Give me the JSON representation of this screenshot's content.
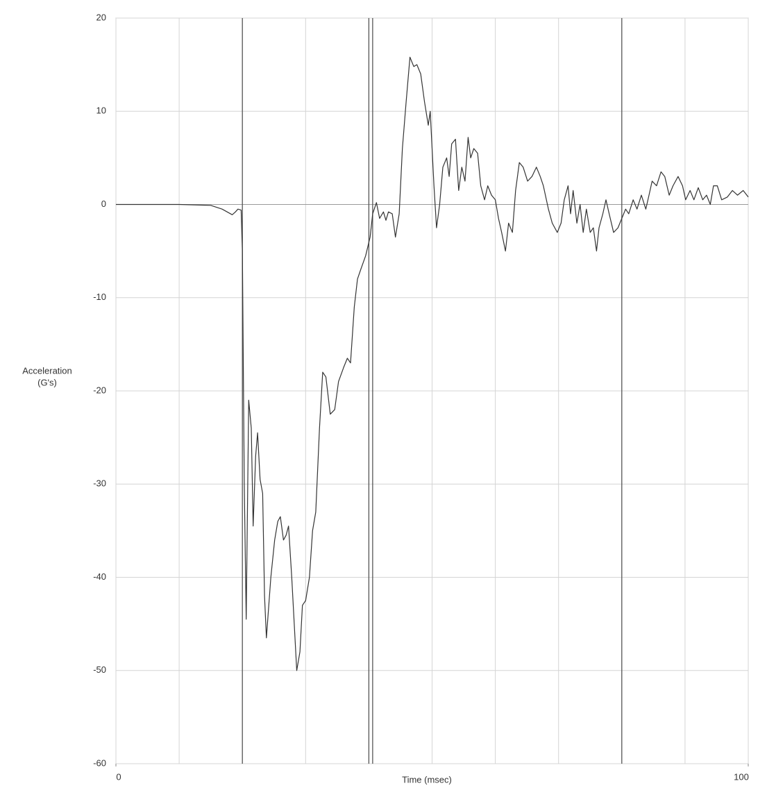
{
  "chart_data": {
    "type": "line",
    "xlabel": "Time (msec)",
    "ylabel": [
      "Acceleration",
      "(G's)"
    ],
    "xlim": [
      0,
      100
    ],
    "ylim": [
      -60,
      20
    ],
    "xticks": [
      0,
      100
    ],
    "yticks": [
      20,
      10,
      0,
      -10,
      -20,
      -30,
      -40,
      -50,
      -60
    ],
    "xgrid": [
      0,
      10,
      20,
      30,
      40,
      50,
      60,
      70,
      80,
      90,
      100
    ],
    "grid": true,
    "vlines": [
      20,
      40,
      40.6,
      80
    ],
    "color": "#333333",
    "x": [
      0,
      10,
      15,
      16.8,
      18.4,
      18.9,
      19.3,
      19.8,
      20,
      20.3,
      20.6,
      21,
      21.4,
      21.7,
      22.1,
      22.4,
      22.8,
      23.2,
      23.5,
      23.8,
      24.5,
      25.1,
      25.6,
      26,
      26.5,
      26.9,
      27.3,
      27.8,
      28.2,
      28.6,
      29.1,
      29.5,
      30,
      30.6,
      31.1,
      31.6,
      32.2,
      32.7,
      33.2,
      33.9,
      34.6,
      35.2,
      36,
      36.6,
      37.1,
      37.7,
      38.2,
      38.7,
      39.5,
      40.2,
      40.6,
      41.2,
      41.7,
      42.3,
      42.7,
      43.1,
      43.7,
      44.2,
      44.8,
      45.3,
      45.9,
      46.5,
      47.1,
      47.6,
      48.2,
      48.8,
      49.4,
      49.7,
      50.3,
      50.7,
      51.2,
      51.7,
      52.3,
      52.7,
      53.1,
      53.7,
      54.2,
      54.7,
      55.2,
      55.7,
      56.1,
      56.6,
      57.2,
      57.7,
      58.3,
      58.8,
      59.4,
      60,
      60.5,
      61,
      61.6,
      62.1,
      62.7,
      63.2,
      63.8,
      64.4,
      65.1,
      65.8,
      66.5,
      67.1,
      67.6,
      68.4,
      69,
      69.8,
      70.4,
      70.9,
      71.5,
      71.9,
      72.3,
      72.9,
      73.4,
      73.9,
      74.4,
      75,
      75.5,
      76,
      76.4,
      77,
      77.5,
      78,
      78.7,
      79.4,
      80,
      80.6,
      81.1,
      81.8,
      82.4,
      83.1,
      83.8,
      84.3,
      84.8,
      85.5,
      86.2,
      86.8,
      87.5,
      88.1,
      88.9,
      89.6,
      90.1,
      90.8,
      91.4,
      92.1,
      92.8,
      93.4,
      94,
      94.5,
      95.1,
      95.8,
      96.7,
      97.5,
      98.3,
      99.2,
      100
    ],
    "series": [
      {
        "name": "Acceleration",
        "color": "#333333",
        "values": [
          0,
          0,
          -0.1,
          -0.5,
          -1.1,
          -0.8,
          -0.5,
          -0.6,
          -5,
          -30,
          -44.5,
          -21,
          -24,
          -34.5,
          -27,
          -24.5,
          -29.5,
          -31,
          -42,
          -46.5,
          -40,
          -36,
          -34,
          -33.5,
          -36,
          -35.5,
          -34.5,
          -40,
          -45,
          -50,
          -48,
          -43,
          -42.5,
          -40,
          -35,
          -33,
          -24,
          -18,
          -18.5,
          -22.5,
          -22,
          -19,
          -17.5,
          -16.5,
          -17,
          -11,
          -8,
          -7,
          -5.5,
          -3.5,
          -1,
          0.2,
          -1.5,
          -0.8,
          -1.7,
          -0.8,
          -1,
          -3.5,
          -1,
          6,
          11,
          15.8,
          14.8,
          15,
          14,
          11,
          8.5,
          10,
          2,
          -2.5,
          0,
          4,
          5,
          3,
          6.5,
          7,
          1.5,
          4,
          2.5,
          7.2,
          5,
          6,
          5.5,
          2,
          0.5,
          2,
          1,
          0.5,
          -1.5,
          -3,
          -5,
          -2,
          -3,
          1.5,
          4.5,
          4,
          2.5,
          3,
          4,
          3,
          2,
          -0.5,
          -2,
          -3,
          -2,
          0.5,
          2,
          -1,
          1.5,
          -2,
          0,
          -3,
          -0.5,
          -3,
          -2.5,
          -5,
          -2.5,
          -1,
          0.5,
          -1,
          -3,
          -2.5,
          -1.5,
          -0.5,
          -1,
          0.5,
          -0.5,
          1,
          -0.5,
          1,
          2.5,
          2,
          3.5,
          3,
          1,
          2,
          3,
          2,
          0.5,
          1.5,
          0.5,
          1.8,
          0.5,
          1,
          0,
          2,
          2,
          0.5,
          0.8,
          1.5,
          1,
          1.5,
          0.8
        ]
      }
    ]
  }
}
